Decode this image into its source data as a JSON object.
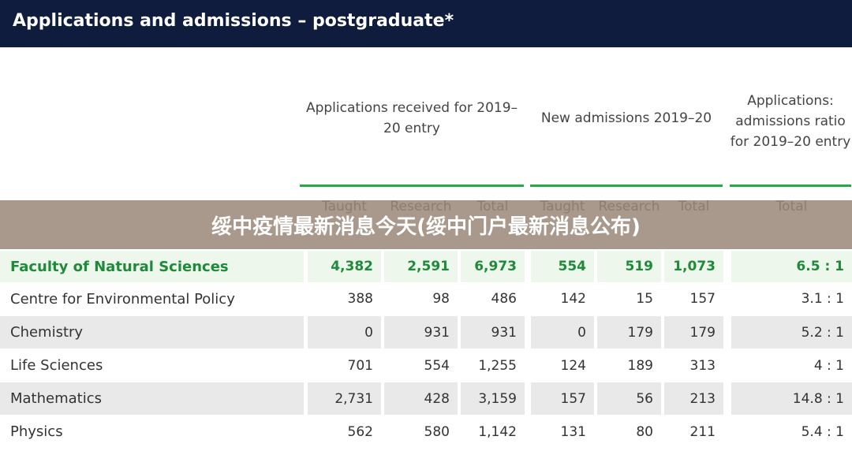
{
  "header": {
    "title": "Applications and admissions – postgraduate*"
  },
  "table": {
    "group_headers": [
      "Applications received for  2019–20 entry",
      "New admissions 2019–20",
      "Applications: admissions ratio for 2019–20 entry"
    ],
    "subheaders": [
      "Taught",
      "Research",
      "Total",
      "Taught",
      "Research",
      "Total",
      "Total"
    ],
    "rows": [
      [
        "Faculty of Natural Sciences",
        "4,382",
        "2,591",
        "6,973",
        "554",
        "519",
        "1,073",
        "6.5 : 1"
      ],
      [
        "Centre for Environmental Policy",
        "388",
        "98",
        "486",
        "142",
        "15",
        "157",
        "3.1 : 1"
      ],
      [
        "Chemistry",
        "0",
        "931",
        "931",
        "0",
        "179",
        "179",
        "5.2 : 1"
      ],
      [
        "Life Sciences",
        "701",
        "554",
        "1,255",
        "124",
        "189",
        "313",
        "4 : 1"
      ],
      [
        "Mathematics",
        "2,731",
        "428",
        "3,159",
        "157",
        "56",
        "213",
        "14.8 : 1"
      ],
      [
        "Physics",
        "562",
        "580",
        "1,142",
        "131",
        "80",
        "211",
        "5.4 : 1"
      ]
    ]
  },
  "banner": "绥中疫情最新消息今天(绥中门户最新消息公布)"
}
